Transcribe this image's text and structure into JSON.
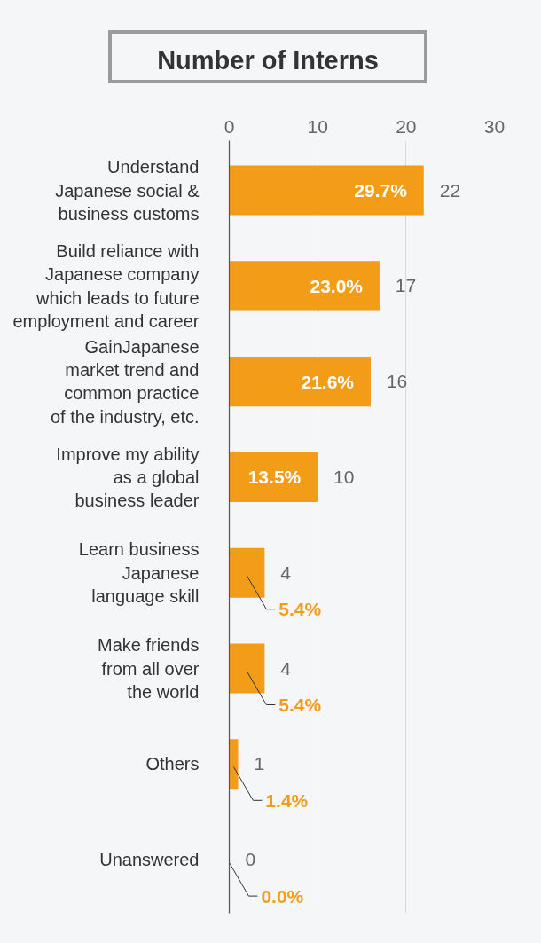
{
  "chart_data": {
    "type": "bar",
    "orientation": "horizontal",
    "title": "Number of Interns",
    "categories": [
      "Understand\nJapanese social &\nbusiness customs",
      "Build reliance with\nJapanese company\nwhich leads to future\nemployment and career",
      "GainJapanese\nmarket trend and\ncommon practice\nof the industry, etc.",
      "Improve my ability\nas a global\nbusiness leader",
      "Learn business\nJapanese\nlanguage skill",
      "Make friends\nfrom all over\nthe world",
      "Others",
      "Unanswered"
    ],
    "values": [
      22,
      17,
      16,
      10,
      4,
      4,
      1,
      0
    ],
    "color": "#f39c17",
    "xlim": [
      0,
      30
    ],
    "xticks": [
      0,
      10,
      20,
      30
    ],
    "grid": "x",
    "data_labels": true,
    "annotations": [
      {
        "text": "29.7%",
        "x": 22,
        "y": "Understand\nJapanese social &\nbusiness customs"
      },
      {
        "text": "23.0%",
        "x": 17,
        "y": "Build reliance with\nJapanese company\nwhich leads to future\nemployment and career"
      },
      {
        "text": "21.6%",
        "x": 16,
        "y": "GainJapanese\nmarket trend and\ncommon practice\nof the industry, etc."
      },
      {
        "text": "13.5%",
        "x": 10,
        "y": "Improve my ability\nas a global\nbusiness leader"
      },
      {
        "text": "5.4%",
        "x": 4,
        "y": "Learn business\nJapanese\nlanguage skill"
      },
      {
        "text": "5.4%",
        "x": 4,
        "y": "Make friends\nfrom all over\nthe world"
      },
      {
        "text": "1.4%",
        "x": 1,
        "y": "Others"
      },
      {
        "text": "0.0%",
        "x": 0,
        "y": "Unanswered"
      }
    ]
  }
}
